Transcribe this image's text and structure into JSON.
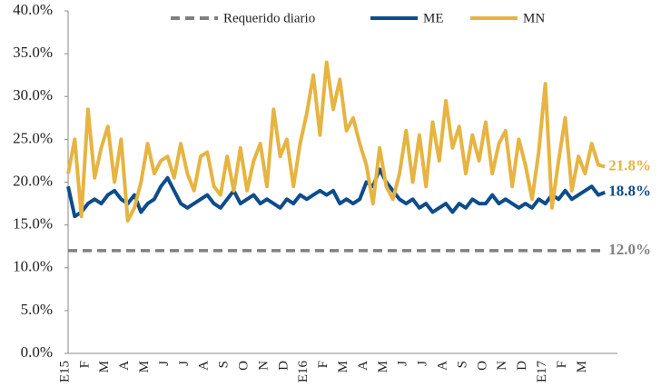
{
  "chart_data": {
    "type": "line",
    "categories": [
      "E15",
      null,
      null,
      "F",
      null,
      null,
      "M",
      null,
      null,
      "A",
      null,
      null,
      "M",
      null,
      null,
      "J",
      null,
      null,
      "J",
      null,
      null,
      "A",
      null,
      null,
      "S",
      null,
      null,
      "O",
      null,
      null,
      "N",
      null,
      null,
      "D",
      null,
      null,
      "E16",
      null,
      null,
      "F",
      null,
      null,
      "M",
      null,
      null,
      "A",
      null,
      null,
      "M",
      null,
      null,
      "J",
      null,
      null,
      "J",
      null,
      null,
      "A",
      null,
      null,
      "S",
      null,
      null,
      "O",
      null,
      null,
      "N",
      null,
      null,
      "D",
      null,
      null,
      "E17",
      null,
      null,
      "F",
      null,
      null,
      "M",
      null,
      null,
      null
    ],
    "series": [
      {
        "name": "Requerido diario",
        "color": "#808080",
        "dashed": true,
        "values": [
          12,
          12,
          12,
          12,
          12,
          12,
          12,
          12,
          12,
          12,
          12,
          12,
          12,
          12,
          12,
          12,
          12,
          12,
          12,
          12,
          12,
          12,
          12,
          12,
          12,
          12,
          12,
          12,
          12,
          12,
          12,
          12,
          12,
          12,
          12,
          12,
          12,
          12,
          12,
          12,
          12,
          12,
          12,
          12,
          12,
          12,
          12,
          12,
          12,
          12,
          12,
          12,
          12,
          12,
          12,
          12,
          12,
          12,
          12,
          12,
          12,
          12,
          12,
          12,
          12,
          12,
          12,
          12,
          12,
          12,
          12,
          12,
          12,
          12,
          12,
          12,
          12,
          12,
          12,
          12,
          12,
          12
        ],
        "value_labels": [
          null,
          null,
          null,
          null,
          null,
          null,
          null,
          null,
          null,
          null,
          null,
          null,
          null,
          null,
          null,
          null,
          null,
          null,
          null,
          null,
          null,
          null,
          null,
          null,
          null,
          null,
          null,
          null,
          null,
          null,
          null,
          null,
          null,
          null,
          null,
          null,
          null,
          null,
          null,
          null,
          null,
          null,
          null,
          null,
          null,
          null,
          null,
          null,
          null,
          null,
          null,
          null,
          null,
          null,
          null,
          null,
          null,
          null,
          null,
          null,
          null,
          null,
          null,
          null,
          null,
          null,
          null,
          null,
          null,
          null,
          null,
          null,
          null,
          null,
          null,
          null,
          null,
          null,
          null,
          null,
          null,
          "12.0%"
        ]
      },
      {
        "name": "ME",
        "color": "#0e4c8a",
        "values": [
          19.5,
          16.0,
          16.5,
          17.5,
          18.0,
          17.5,
          18.5,
          19.0,
          18.0,
          17.5,
          18.5,
          16.5,
          17.5,
          18.0,
          19.5,
          20.5,
          19.0,
          17.5,
          17.0,
          17.5,
          18.0,
          18.5,
          17.5,
          17.0,
          18.0,
          19.0,
          17.5,
          18.0,
          18.5,
          17.5,
          18.0,
          17.5,
          17.0,
          18.0,
          17.5,
          18.5,
          18.0,
          18.5,
          19.0,
          18.5,
          19.0,
          17.5,
          18.0,
          17.5,
          18.0,
          20.0,
          19.5,
          21.5,
          20.0,
          19.0,
          18.0,
          17.5,
          18.0,
          17.0,
          17.5,
          16.5,
          17.0,
          17.5,
          16.5,
          17.5,
          17.0,
          18.0,
          17.5,
          17.5,
          18.5,
          17.5,
          18.0,
          17.5,
          17.0,
          17.5,
          17.0,
          18.0,
          17.5,
          18.5,
          18.0,
          19.0,
          18.0,
          18.5,
          19.0,
          19.5,
          18.5,
          18.8
        ],
        "value_labels": [
          null,
          null,
          null,
          null,
          null,
          null,
          null,
          null,
          null,
          null,
          null,
          null,
          null,
          null,
          null,
          null,
          null,
          null,
          null,
          null,
          null,
          null,
          null,
          null,
          null,
          null,
          null,
          null,
          null,
          null,
          null,
          null,
          null,
          null,
          null,
          null,
          null,
          null,
          null,
          null,
          null,
          null,
          null,
          null,
          null,
          null,
          null,
          null,
          null,
          null,
          null,
          null,
          null,
          null,
          null,
          null,
          null,
          null,
          null,
          null,
          null,
          null,
          null,
          null,
          null,
          null,
          null,
          null,
          null,
          null,
          null,
          null,
          null,
          null,
          null,
          null,
          null,
          null,
          null,
          null,
          null,
          "18.8%"
        ]
      },
      {
        "name": "MN",
        "color": "#e6b441",
        "values": [
          21.0,
          25.0,
          16.0,
          28.5,
          20.5,
          24.0,
          26.5,
          20.0,
          25.0,
          15.5,
          17.0,
          20.0,
          24.5,
          21.0,
          22.5,
          23.0,
          20.5,
          24.5,
          21.0,
          19.0,
          23.0,
          23.5,
          19.5,
          18.5,
          23.0,
          19.0,
          24.0,
          19.0,
          22.5,
          24.5,
          19.5,
          28.5,
          23.0,
          25.0,
          19.5,
          24.5,
          28.0,
          32.5,
          25.5,
          34.0,
          28.5,
          32.0,
          26.0,
          27.5,
          24.5,
          22.0,
          17.5,
          24.0,
          19.5,
          18.0,
          21.0,
          26.0,
          20.0,
          25.5,
          19.5,
          27.0,
          22.5,
          29.5,
          24.0,
          26.5,
          21.0,
          25.5,
          22.5,
          27.0,
          21.0,
          24.5,
          26.0,
          19.5,
          25.0,
          22.0,
          18.0,
          23.5,
          31.5,
          17.0,
          22.5,
          27.5,
          19.0,
          23.0,
          21.0,
          24.5,
          22.0,
          21.8
        ],
        "value_labels": [
          null,
          null,
          null,
          null,
          null,
          null,
          null,
          null,
          null,
          null,
          null,
          null,
          null,
          null,
          null,
          null,
          null,
          null,
          null,
          null,
          null,
          null,
          null,
          null,
          null,
          null,
          null,
          null,
          null,
          null,
          null,
          null,
          null,
          null,
          null,
          null,
          null,
          null,
          null,
          null,
          null,
          null,
          null,
          null,
          null,
          null,
          null,
          null,
          null,
          null,
          null,
          null,
          null,
          null,
          null,
          null,
          null,
          null,
          null,
          null,
          null,
          null,
          null,
          null,
          null,
          null,
          null,
          null,
          null,
          null,
          null,
          null,
          null,
          null,
          null,
          null,
          null,
          null,
          null,
          null,
          null,
          "21.8%"
        ]
      }
    ],
    "ylim": [
      0,
      40
    ],
    "yticks": [
      {
        "value": 0,
        "label": "0.0%"
      },
      {
        "value": 5,
        "label": "5.0%"
      },
      {
        "value": 10,
        "label": "10.0%"
      },
      {
        "value": 15,
        "label": "15.0%"
      },
      {
        "value": 20,
        "label": "20.0%"
      },
      {
        "value": 25,
        "label": "25.0%"
      },
      {
        "value": 30,
        "label": "30.0%"
      },
      {
        "value": 35,
        "label": "35.0%"
      },
      {
        "value": 40,
        "label": "40.0%"
      }
    ],
    "legend": "top",
    "grid": false
  }
}
